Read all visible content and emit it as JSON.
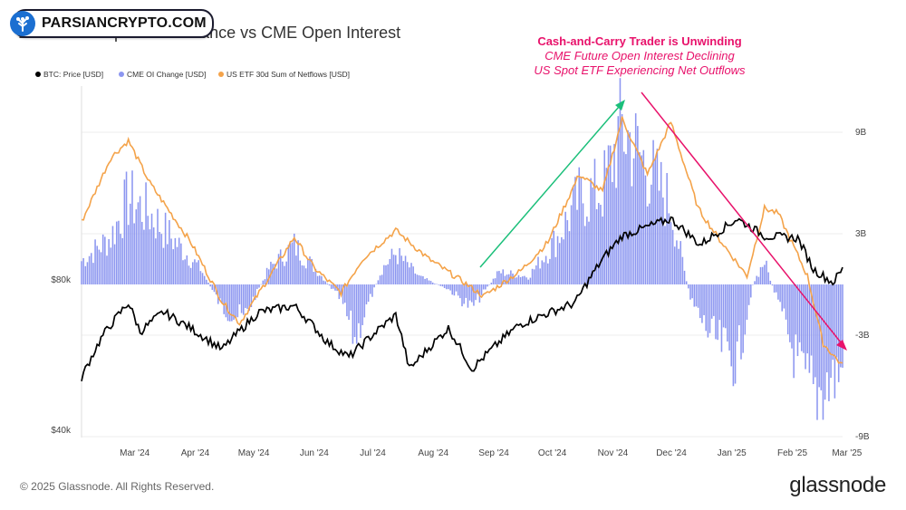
{
  "watermark": {
    "text": "PARSIANCRYPTO.COM",
    "logo": "tree-logo-icon"
  },
  "footer": {
    "copyright": "© 2025 Glassnode. All Rights Reserved.",
    "brand": "glassnode"
  },
  "colors": {
    "price": "#000000",
    "cme": "#8c96f0",
    "etf": "#f4a34a",
    "annotation": "#e8126b",
    "up_arrow": "#1bbf7a",
    "down_arrow": "#e8126b",
    "grid": "#eeeeee",
    "axis_text": "#444444"
  },
  "chart_data": {
    "type": "bar+line",
    "title": "Bitcoin: US Spot ETF Balance vs CME Open Interest",
    "annotation": {
      "title": "Cash-and-Carry Trader is Unwinding",
      "lines": [
        "CME Future Open Interest Declining",
        "US Spot ETF Experiencing Net Outflows"
      ]
    },
    "legend": {
      "placement": "top-left",
      "items": [
        {
          "label": "BTC: Price [USD]",
          "color": "#000000"
        },
        {
          "label": "CME OI Change [USD]",
          "color": "#8c96f0"
        },
        {
          "label": "US ETF 30d Sum of Netflows [USD]",
          "color": "#f4a34a"
        }
      ]
    },
    "x_ticks": [
      "Mar '24",
      "Apr '24",
      "May '24",
      "Jun '24",
      "Jul '24",
      "Aug '24",
      "Sep '24",
      "Oct '24",
      "Nov '24",
      "Dec '24",
      "Jan '25",
      "Feb '25",
      "Mar '25"
    ],
    "y_left": {
      "ticks": [
        "$40k",
        "$80k"
      ],
      "scale": "log"
    },
    "y_right": {
      "ticks": [
        "9B",
        "3B",
        "-3B",
        "-9B"
      ],
      "range_billion": [
        -9,
        9
      ]
    },
    "grid": true,
    "series": [
      {
        "name": "BTC: Price [USD]",
        "type": "line",
        "axis": "left",
        "points": [
          [
            "Feb 19 '24",
            51000
          ],
          [
            "Mar 1 '24",
            62000
          ],
          [
            "Mar 14 '24",
            72000
          ],
          [
            "Mar 20 '24",
            63000
          ],
          [
            "Apr 1 '24",
            69000
          ],
          [
            "Apr 15 '24",
            64000
          ],
          [
            "May 1 '24",
            58000
          ],
          [
            "May 20 '24",
            69000
          ],
          [
            "Jun 7 '24",
            71000
          ],
          [
            "Jun 24 '24",
            60000
          ],
          [
            "Jul 5 '24",
            56000
          ],
          [
            "Jul 29 '24",
            68000
          ],
          [
            "Aug 5 '24",
            53000
          ],
          [
            "Aug 25 '24",
            64000
          ],
          [
            "Sep 6 '24",
            53000
          ],
          [
            "Sep 30 '24",
            65000
          ],
          [
            "Oct 29 '24",
            72000
          ],
          [
            "Nov 12 '24",
            88000
          ],
          [
            "Nov 22 '24",
            98000
          ],
          [
            "Dec 17 '24",
            106000
          ],
          [
            "Jan 1 '25",
            94000
          ],
          [
            "Jan 20 '25",
            106000
          ],
          [
            "Feb 3 '25",
            98000
          ],
          [
            "Feb 20 '25",
            97000
          ],
          [
            "Feb 28 '25",
            84000
          ],
          [
            "Mar 10 '25",
            79000
          ],
          [
            "Mar 15 '25",
            84000
          ]
        ]
      },
      {
        "name": "US ETF 30d Sum of Netflows [USD]",
        "type": "line",
        "axis": "right",
        "unit": "B",
        "points": [
          [
            "Feb 19 '24",
            3.7
          ],
          [
            "Mar 5 '24",
            7.5
          ],
          [
            "Mar 14 '24",
            8.5
          ],
          [
            "Mar 25 '24",
            6.0
          ],
          [
            "Apr 15 '24",
            2.5
          ],
          [
            "May 1 '24",
            -1.0
          ],
          [
            "May 10 '24",
            -2.3
          ],
          [
            "May 31 '24",
            1.5
          ],
          [
            "Jun 7 '24",
            2.8
          ],
          [
            "Jun 17 '24",
            1.0
          ],
          [
            "Jul 1 '24",
            -0.5
          ],
          [
            "Jul 12 '24",
            1.5
          ],
          [
            "Jul 29 '24",
            3.2
          ],
          [
            "Aug 15 '24",
            1.5
          ],
          [
            "Sep 1 '24",
            0.2
          ],
          [
            "Sep 12 '24",
            -0.7
          ],
          [
            "Oct 1 '24",
            0.8
          ],
          [
            "Oct 15 '24",
            2.5
          ],
          [
            "Oct 31 '24",
            6.5
          ],
          [
            "Nov 12 '24",
            5.5
          ],
          [
            "Nov 22 '24",
            9.8
          ],
          [
            "Dec 5 '24",
            6.5
          ],
          [
            "Dec 17 '24",
            9.6
          ],
          [
            "Dec 31 '24",
            4.5
          ],
          [
            "Jan 10 '25",
            2.8
          ],
          [
            "Jan 25 '25",
            0.5
          ],
          [
            "Feb 3 '25",
            4.5
          ],
          [
            "Feb 10 '25",
            4.2
          ],
          [
            "Feb 25 '25",
            0.5
          ],
          [
            "Mar 5 '25",
            -3.5
          ],
          [
            "Mar 15 '25",
            -4.8
          ]
        ]
      },
      {
        "name": "CME OI Change [USD]",
        "type": "bar",
        "axis": "right",
        "unit": "B",
        "anchors": [
          [
            "Feb 19 '24",
            1.5
          ],
          [
            "Mar 5 '24",
            3.0
          ],
          [
            "Mar 14 '24",
            5.5
          ],
          [
            "Mar 25 '24",
            4.5
          ],
          [
            "Apr 5 '24",
            3.0
          ],
          [
            "Apr 20 '24",
            1.0
          ],
          [
            "May 1 '24",
            -1.5
          ],
          [
            "May 12 '24",
            -2.2
          ],
          [
            "May 25 '24",
            1.0
          ],
          [
            "Jun 7 '24",
            2.5
          ],
          [
            "Jun 18 '24",
            1.0
          ],
          [
            "Jul 1 '24",
            -1.0
          ],
          [
            "Jul 8 '24",
            -3.5
          ],
          [
            "Jul 22 '24",
            1.0
          ],
          [
            "Jul 29 '24",
            2.0
          ],
          [
            "Aug 10 '24",
            0.5
          ],
          [
            "Aug 25 '24",
            -0.3
          ],
          [
            "Sep 6 '24",
            -1.5
          ],
          [
            "Sep 20 '24",
            0.8
          ],
          [
            "Oct 5 '24",
            0.5
          ],
          [
            "Oct 20 '24",
            3.0
          ],
          [
            "Oct 31 '24",
            5.5
          ],
          [
            "Nov 12 '24",
            6.0
          ],
          [
            "Nov 22 '24",
            10.0
          ],
          [
            "Dec 5 '24",
            7.5
          ],
          [
            "Dec 17 '24",
            5.0
          ],
          [
            "Dec 27 '24",
            -1.0
          ],
          [
            "Jan 5 '25",
            -3.0
          ],
          [
            "Jan 20 '25",
            -5.0
          ],
          [
            "Jan 28 '25",
            0.0
          ],
          [
            "Feb 3 '25",
            1.5
          ],
          [
            "Feb 12 '25",
            -2.0
          ],
          [
            "Feb 22 '25",
            -6.0
          ],
          [
            "Mar 1 '25",
            -7.0
          ],
          [
            "Mar 15 '25",
            -5.5
          ]
        ]
      }
    ]
  }
}
